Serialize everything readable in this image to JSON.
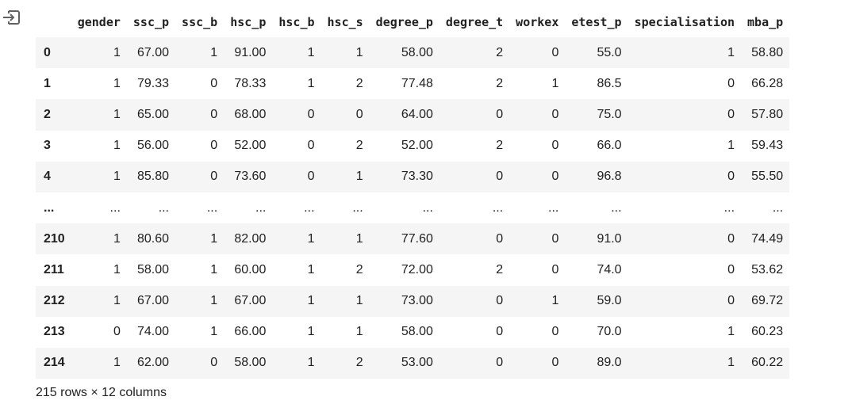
{
  "output_icon": "exit-output-icon",
  "table": {
    "columns": [
      "gender",
      "ssc_p",
      "ssc_b",
      "hsc_p",
      "hsc_b",
      "hsc_s",
      "degree_p",
      "degree_t",
      "workex",
      "etest_p",
      "specialisation",
      "mba_p"
    ],
    "rows": [
      {
        "index": "0",
        "cells": [
          "1",
          "67.00",
          "1",
          "91.00",
          "1",
          "1",
          "58.00",
          "2",
          "0",
          "55.0",
          "1",
          "58.80"
        ]
      },
      {
        "index": "1",
        "cells": [
          "1",
          "79.33",
          "0",
          "78.33",
          "1",
          "2",
          "77.48",
          "2",
          "1",
          "86.5",
          "0",
          "66.28"
        ]
      },
      {
        "index": "2",
        "cells": [
          "1",
          "65.00",
          "0",
          "68.00",
          "0",
          "0",
          "64.00",
          "0",
          "0",
          "75.0",
          "0",
          "57.80"
        ]
      },
      {
        "index": "3",
        "cells": [
          "1",
          "56.00",
          "0",
          "52.00",
          "0",
          "2",
          "52.00",
          "2",
          "0",
          "66.0",
          "1",
          "59.43"
        ]
      },
      {
        "index": "4",
        "cells": [
          "1",
          "85.80",
          "0",
          "73.60",
          "0",
          "1",
          "73.30",
          "0",
          "0",
          "96.8",
          "0",
          "55.50"
        ]
      },
      {
        "index": "...",
        "cells": [
          "...",
          "...",
          "...",
          "...",
          "...",
          "...",
          "...",
          "...",
          "...",
          "...",
          "...",
          "..."
        ]
      },
      {
        "index": "210",
        "cells": [
          "1",
          "80.60",
          "1",
          "82.00",
          "1",
          "1",
          "77.60",
          "0",
          "0",
          "91.0",
          "0",
          "74.49"
        ]
      },
      {
        "index": "211",
        "cells": [
          "1",
          "58.00",
          "1",
          "60.00",
          "1",
          "2",
          "72.00",
          "2",
          "0",
          "74.0",
          "0",
          "53.62"
        ]
      },
      {
        "index": "212",
        "cells": [
          "1",
          "67.00",
          "1",
          "67.00",
          "1",
          "1",
          "73.00",
          "0",
          "1",
          "59.0",
          "0",
          "69.72"
        ]
      },
      {
        "index": "213",
        "cells": [
          "0",
          "74.00",
          "1",
          "66.00",
          "1",
          "1",
          "58.00",
          "0",
          "0",
          "70.0",
          "1",
          "60.23"
        ]
      },
      {
        "index": "214",
        "cells": [
          "1",
          "62.00",
          "0",
          "58.00",
          "1",
          "2",
          "53.00",
          "0",
          "0",
          "89.0",
          "1",
          "60.22"
        ]
      }
    ]
  },
  "footer": "215 rows × 12 columns"
}
